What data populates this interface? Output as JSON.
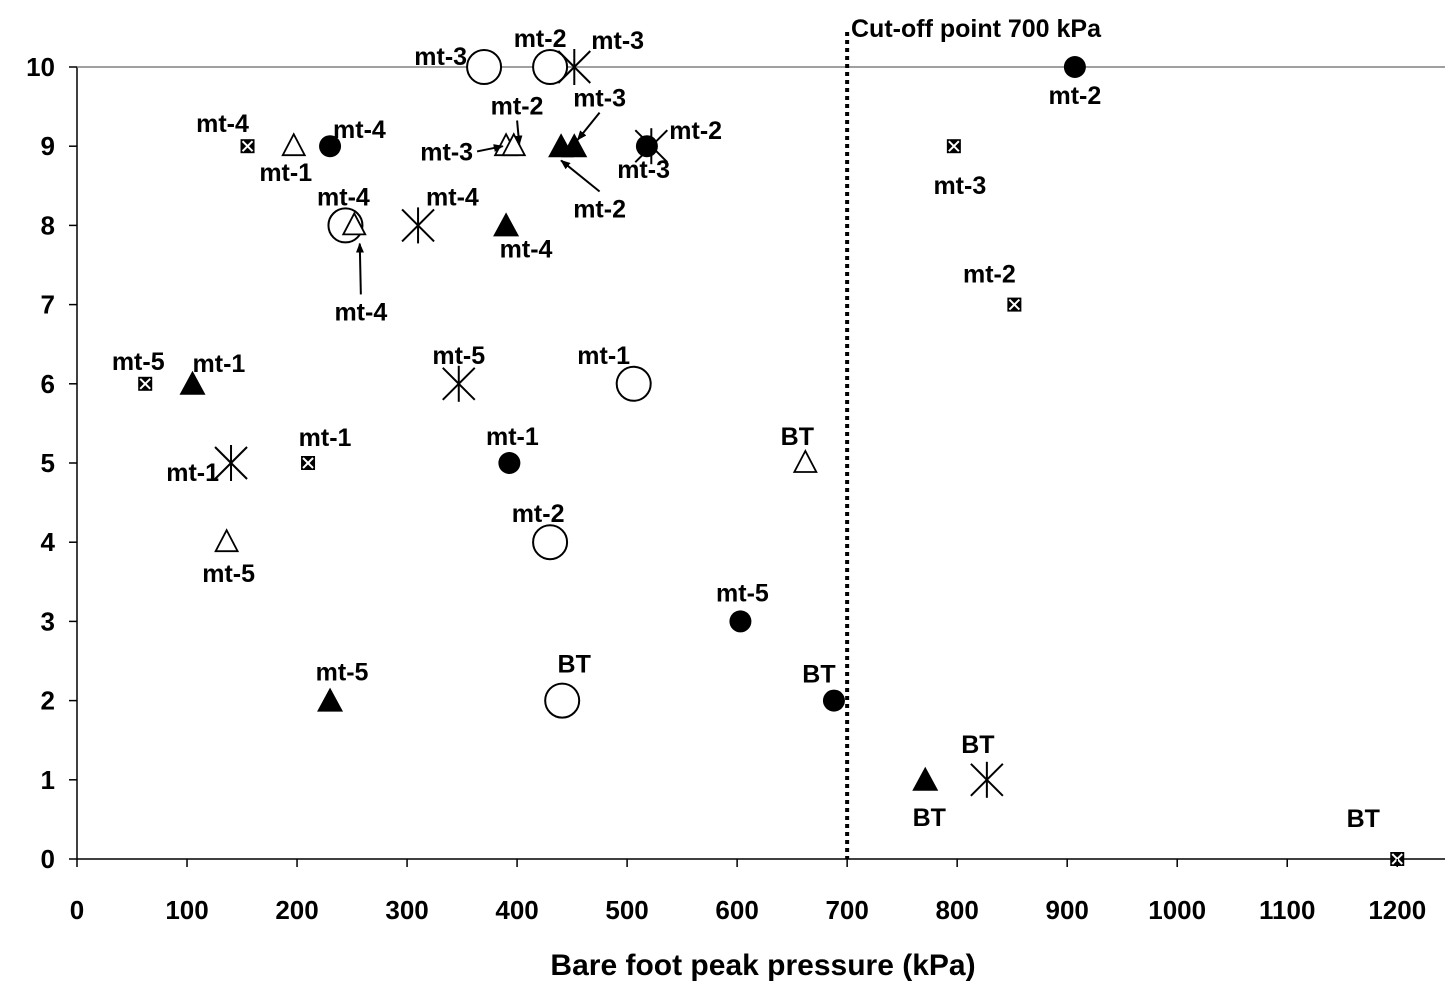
{
  "chart_data": {
    "type": "scatter",
    "title": "",
    "xlabel": "Bare foot peak pressure (kPa)",
    "ylabel": "",
    "xlim": [
      0,
      1250
    ],
    "ylim": [
      0,
      10
    ],
    "x_ticks": [
      0,
      100,
      200,
      300,
      400,
      500,
      600,
      700,
      800,
      900,
      1000,
      1100,
      1200
    ],
    "y_ticks": [
      0,
      1,
      2,
      3,
      4,
      5,
      6,
      7,
      8,
      9,
      10
    ],
    "grid": false,
    "legend": "none",
    "reference_line": {
      "x": 700,
      "style": "dotted",
      "label": "Cut-off point 700 kPa"
    },
    "series": [
      {
        "marker": "filled-circle",
        "points": [
          {
            "x": 907,
            "y": 10,
            "label": "mt-2"
          },
          {
            "x": 230,
            "y": 9,
            "label": "mt-4"
          },
          {
            "x": 518,
            "y": 9,
            "label": ""
          },
          {
            "x": 393,
            "y": 5,
            "label": "mt-1"
          },
          {
            "x": 603,
            "y": 3,
            "label": "mt-5"
          },
          {
            "x": 688,
            "y": 2,
            "label": "BT"
          }
        ]
      },
      {
        "marker": "open-circle",
        "points": [
          {
            "x": 370,
            "y": 10,
            "label": "mt-3"
          },
          {
            "x": 430,
            "y": 10,
            "label": "mt-2"
          },
          {
            "x": 244,
            "y": 8,
            "label": "mt-4"
          },
          {
            "x": 506,
            "y": 6,
            "label": "mt-1"
          },
          {
            "x": 430,
            "y": 4,
            "label": "mt-2"
          },
          {
            "x": 441,
            "y": 2,
            "label": "BT"
          }
        ]
      },
      {
        "marker": "filled-triangle",
        "points": [
          {
            "x": 440,
            "y": 9,
            "label": ""
          },
          {
            "x": 452,
            "y": 9,
            "label": ""
          },
          {
            "x": 390,
            "y": 8,
            "label": "mt-4"
          },
          {
            "x": 105,
            "y": 6,
            "label": "mt-1"
          },
          {
            "x": 230,
            "y": 2,
            "label": "mt-5"
          },
          {
            "x": 771,
            "y": 1,
            "label": "BT"
          }
        ]
      },
      {
        "marker": "open-triangle",
        "points": [
          {
            "x": 197,
            "y": 9,
            "label": "mt-1"
          },
          {
            "x": 390,
            "y": 9,
            "label": ""
          },
          {
            "x": 397,
            "y": 9,
            "label": ""
          },
          {
            "x": 252,
            "y": 8,
            "label": ""
          },
          {
            "x": 662,
            "y": 5,
            "label": "BT"
          },
          {
            "x": 136,
            "y": 4,
            "label": "mt-5"
          }
        ]
      },
      {
        "marker": "asterisk",
        "points": [
          {
            "x": 452,
            "y": 10,
            "label": "mt-3"
          },
          {
            "x": 522,
            "y": 9,
            "label": "mt-2"
          },
          {
            "x": 310,
            "y": 8,
            "label": "mt-4"
          },
          {
            "x": 347,
            "y": 6,
            "label": "mt-5"
          },
          {
            "x": 140,
            "y": 5,
            "label": "mt-1"
          },
          {
            "x": 827,
            "y": 1,
            "label": "BT"
          }
        ]
      },
      {
        "marker": "small-square",
        "points": [
          {
            "x": 155,
            "y": 9,
            "label": "mt-4"
          },
          {
            "x": 797,
            "y": 9,
            "label": "mt-3"
          },
          {
            "x": 852,
            "y": 7,
            "label": "mt-2"
          },
          {
            "x": 62,
            "y": 6,
            "label": "mt-5"
          },
          {
            "x": 210,
            "y": 5,
            "label": "mt-1"
          },
          {
            "x": 1200,
            "y": 0,
            "label": "BT"
          }
        ]
      }
    ],
    "annotations": [
      {
        "text": "mt-3",
        "x_text": 360,
        "y_text": 8.82,
        "x_arrow": 387,
        "y_arrow": 9,
        "anchor": "end"
      },
      {
        "text": "mt-2",
        "x_text": 400,
        "y_text": 9.4,
        "x_arrow": 402,
        "y_arrow": 9.02,
        "anchor": "middle"
      },
      {
        "text": "mt-3",
        "x_text": 475,
        "y_text": 9.5,
        "x_arrow": 455,
        "y_arrow": 9.08,
        "anchor": "middle"
      },
      {
        "text": "mt-2",
        "x_text": 475,
        "y_text": 8.1,
        "x_arrow": 440,
        "y_arrow": 8.82,
        "anchor": "middle"
      },
      {
        "text": "mt-3",
        "x_text": 515,
        "y_text": 8.6,
        "x_arrow": null,
        "y_arrow": null,
        "anchor": "middle"
      },
      {
        "text": "mt-4",
        "x_text": 258,
        "y_text": 6.8,
        "x_arrow": 257,
        "y_arrow": 7.77,
        "anchor": "middle"
      }
    ]
  }
}
